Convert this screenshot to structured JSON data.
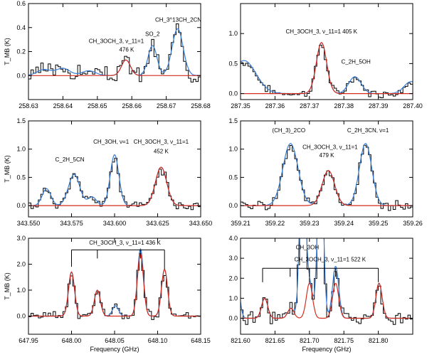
{
  "chart_data": [
    {
      "type": "line",
      "id": "p1",
      "xlabel": "",
      "ylabel": "T_MB (K)",
      "xlim": [
        258.63,
        258.68
      ],
      "ylim": [
        -0.2,
        0.6
      ],
      "xticks": [
        "258.63",
        "258.64",
        "258.65",
        "258.66",
        "258.67",
        "258.68"
      ],
      "yticks": [
        "0.0",
        "0.2",
        "0.4",
        "0.6"
      ],
      "red": [
        [
          258.6583,
          0.13,
          0.0013
        ]
      ],
      "blue_extra": [
        [
          258.6345,
          0.05,
          0.002
        ],
        [
          258.64,
          0.06,
          0.002
        ],
        [
          258.6475,
          0.04,
          0.002
        ],
        [
          258.666,
          0.25,
          0.0013
        ],
        [
          258.6733,
          0.39,
          0.0016
        ]
      ],
      "noise": 0.05,
      "seed": 3,
      "labels": [
        {
          "t": "CH_3OCH_3, ν_11=1",
          "x": 258.6555,
          "y": 0.27
        },
        {
          "t": "476  K",
          "x": 258.6585,
          "y": 0.2
        },
        {
          "t": "SO_2",
          "x": 258.666,
          "y": 0.33
        },
        {
          "t": "CH_3^13CH_2CN",
          "x": 258.6735,
          "y": 0.45
        }
      ],
      "bracket": null
    },
    {
      "type": "line",
      "id": "p2",
      "xlabel": "",
      "ylabel": "",
      "xlim": [
        287.35,
        287.4
      ],
      "ylim": [
        -0.1,
        1.5
      ],
      "xticks": [
        "287.35",
        "287.36",
        "287.37",
        "287.38",
        "287.39",
        "287.40"
      ],
      "yticks": [
        "0.0",
        "0.5",
        "1.0"
      ],
      "red": [
        [
          287.3735,
          0.85,
          0.0015
        ]
      ],
      "blue_extra": [
        [
          287.351,
          0.55,
          0.0035
        ],
        [
          287.3832,
          0.28,
          0.0018
        ],
        [
          287.3995,
          0.2,
          0.002
        ]
      ],
      "noise": 0.05,
      "seed": 7,
      "labels": [
        {
          "t": "CH_3OCH_3, ν_11=1 405 K",
          "x": 287.3735,
          "y": 1.0
        },
        {
          "t": "C_2H_5OH",
          "x": 287.3835,
          "y": 0.5
        }
      ],
      "bracket": null
    },
    {
      "type": "line",
      "id": "p3",
      "xlabel": "",
      "ylabel": "T_MB (K)",
      "xlim": [
        343.55,
        343.65
      ],
      "ylim": [
        -0.2,
        1.5
      ],
      "xticks": [
        "343.550",
        "343.575",
        "343.600",
        "343.625",
        "343.650"
      ],
      "yticks": [
        "0.0",
        "0.5",
        "1.0",
        "1.5"
      ],
      "red": [
        [
          343.627,
          0.68,
          0.0033
        ]
      ],
      "blue_extra": [
        [
          343.5605,
          0.3,
          0.0025
        ],
        [
          343.5765,
          0.55,
          0.0033
        ],
        [
          343.587,
          0.15,
          0.0025
        ],
        [
          343.6,
          0.9,
          0.0025
        ]
      ],
      "noise": 0.06,
      "seed": 11,
      "labels": [
        {
          "t": "C_2H_5CN",
          "x": 343.574,
          "y": 0.78
        },
        {
          "t": "CH_3OH, ν=1",
          "x": 343.598,
          "y": 1.1
        },
        {
          "t": "CH_3OCH_3, ν_11=1",
          "x": 343.627,
          "y": 1.1
        },
        {
          "t": "452  K",
          "x": 343.627,
          "y": 0.93
        }
      ],
      "bracket": null
    },
    {
      "type": "line",
      "id": "p4",
      "xlabel": "",
      "ylabel": "",
      "xlim": [
        359.21,
        359.26
      ],
      "ylim": [
        -0.2,
        1.5
      ],
      "xticks": [
        "359.21",
        "359.22",
        "359.23",
        "359.24",
        "359.25",
        "359.26"
      ],
      "yticks": [
        "0.0",
        "0.5",
        "1.0",
        "1.5"
      ],
      "red": [
        [
          359.2355,
          0.62,
          0.0018
        ]
      ],
      "blue_extra": [
        [
          359.2245,
          1.1,
          0.0022
        ],
        [
          359.2463,
          1.1,
          0.0018
        ]
      ],
      "noise": 0.06,
      "seed": 19,
      "labels": [
        {
          "t": "(CH_3)_2CO",
          "x": 359.224,
          "y": 1.3
        },
        {
          "t": "CH_3OCH_3, ν_11=1",
          "x": 359.236,
          "y": 1.0
        },
        {
          "t": "479 K",
          "x": 359.235,
          "y": 0.86
        },
        {
          "t": "C_2H_3CN, ν=1",
          "x": 359.247,
          "y": 1.3
        }
      ],
      "bracket": null
    },
    {
      "type": "line",
      "id": "p5",
      "xlabel": "Frequency (GHz)",
      "ylabel": "T_MB (K)",
      "xlim": [
        647.95,
        648.15
      ],
      "ylim": [
        -0.7,
        3.0
      ],
      "xticks": [
        "647.95",
        "648.00",
        "648.05",
        "648.10",
        "648.15"
      ],
      "yticks": [
        "0.0",
        "1.0",
        "2.0",
        "3.0"
      ],
      "red": [
        [
          648.0,
          1.7,
          0.0035
        ],
        [
          648.03,
          1.0,
          0.0035
        ],
        [
          648.08,
          2.4,
          0.0035
        ],
        [
          648.108,
          1.8,
          0.0035
        ]
      ],
      "blue_extra": [
        [
          648.051,
          0.4,
          0.0035
        ],
        [
          648.081,
          0.2,
          0.003
        ]
      ],
      "noise": 0.12,
      "seed": 23,
      "labels": [
        {
          "t": "CH_3OCH_3, ν_11=1  436 K",
          "x": 648.062,
          "y": 2.75
        }
      ],
      "bracket": {
        "y": 2.55,
        "ticks": [
          648.0,
          648.03,
          648.08,
          648.108
        ],
        "ends": [
          1.9,
          1.8
        ]
      }
    },
    {
      "type": "line",
      "id": "p6",
      "xlabel": "Frequency (GHz)",
      "ylabel": "",
      "xlim": [
        821.6,
        821.85
      ],
      "ylim": [
        -0.8,
        4.0
      ],
      "xticks": [
        "821.60",
        "821.65",
        "821.70",
        "821.75",
        "821.80"
      ],
      "yticks": [
        "0.0",
        "1.0",
        "2.0",
        "3.0",
        "4.0"
      ],
      "red": [
        [
          821.635,
          1.0,
          0.0045
        ],
        [
          821.673,
          0.5,
          0.0045
        ],
        [
          821.7,
          1.75,
          0.0045
        ],
        [
          821.738,
          1.75,
          0.0045
        ],
        [
          821.801,
          1.75,
          0.0045
        ]
      ],
      "blue_extra": [
        [
          821.69,
          9.0,
          0.004
        ],
        [
          821.716,
          9.0,
          0.004
        ],
        [
          821.738,
          0.85,
          0.0045
        ],
        [
          821.595,
          1.8,
          0.004
        ]
      ],
      "noise": 0.25,
      "seed": 31,
      "labels": [
        {
          "t": "CH_3OH",
          "x": 821.697,
          "y": 3.45
        },
        {
          "t": "CH_3OCH_3, ν_11=1 522 K",
          "x": 821.73,
          "y": 2.85
        }
      ],
      "bracket": {
        "y": 2.5,
        "ticks": [
          821.632,
          821.672,
          821.7,
          821.738,
          821.8
        ],
        "ends": [
          1.8,
          1.8
        ]
      }
    }
  ],
  "colors": {
    "observed": "#000000",
    "model_species": "#d62c1e",
    "model_total": "#3a7fd8"
  }
}
